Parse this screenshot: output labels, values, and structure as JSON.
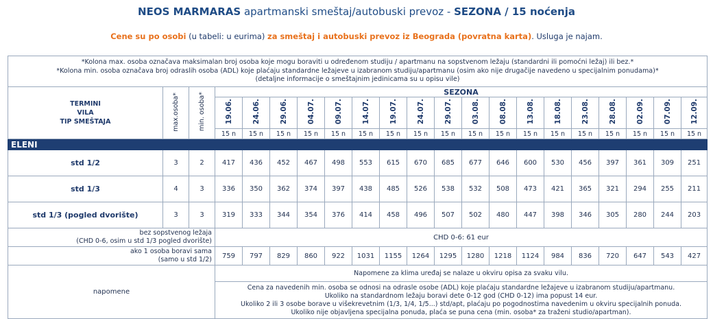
{
  "header": {
    "title_bold": "NEOS MARMARAS",
    "title_mid": " apartmanski smeštaj/autobuski prevoz - ",
    "title_season": "SEZONA / 15 noćenja",
    "sub_or1": "Cene su po osobi",
    "sub_mid1": " (u tabeli: u eurima) ",
    "sub_or2": "za smeštaj i autobuski prevoz iz Beograda (povratna karta)",
    "sub_end": ". Usluga je najam."
  },
  "info_notes": [
    "*Kolona max. osoba označava maksimalan broj osoba koje mogu boraviti u određenom studiju / apartmanu na sopstvenom ležaju (standardni ili pomoćni ležaj) ili bez.*",
    "*Kolona min. osoba označava broj odraslih osoba (ADL) koje plaćaju standardne ležajeve u izabranom studiju/apartmanu (osim ako nije drugačije navedeno u specijalnim ponudama)*",
    "(detaljne informacije o smeštajnim jedinicama su u opisu vile)"
  ],
  "table": {
    "left_header": [
      "TERMINI",
      "VILA",
      "TIP SMEŠTAJA"
    ],
    "max_header": "max.osoba*",
    "min_header": "min. osoba*",
    "season_label": "SEZONA",
    "dates": [
      "19.06.",
      "24.06.",
      "29.06.",
      "04.07.",
      "09.07.",
      "14.07.",
      "19.07.",
      "24.07.",
      "29.07.",
      "03.08.",
      "08.08.",
      "13.08.",
      "18.08.",
      "23.08.",
      "28.08.",
      "02.09.",
      "07.09.",
      "12.09."
    ],
    "nights": [
      "15 n",
      "15 n",
      "15 n",
      "15 n",
      "15 n",
      "15 n",
      "15 n",
      "15 n",
      "15 n",
      "15 n",
      "15 n",
      "15 n",
      "15 n",
      "15 n",
      "15 n",
      "15 n",
      "15 n",
      "15 n"
    ],
    "villa": "ELENI",
    "rows": [
      {
        "type": "std 1/2",
        "max": "3",
        "min": "2",
        "prices": [
          "417",
          "436",
          "452",
          "467",
          "498",
          "553",
          "615",
          "670",
          "685",
          "677",
          "646",
          "600",
          "530",
          "456",
          "397",
          "361",
          "309",
          "251"
        ]
      },
      {
        "type": "std 1/3",
        "max": "4",
        "min": "3",
        "prices": [
          "336",
          "350",
          "362",
          "374",
          "397",
          "438",
          "485",
          "526",
          "538",
          "532",
          "508",
          "473",
          "421",
          "365",
          "321",
          "294",
          "255",
          "211"
        ]
      },
      {
        "type": "std 1/3 (pogled dvorište)",
        "max": "3",
        "min": "3",
        "prices": [
          "319",
          "333",
          "344",
          "354",
          "376",
          "414",
          "458",
          "496",
          "507",
          "502",
          "480",
          "447",
          "398",
          "346",
          "305",
          "280",
          "244",
          "203"
        ]
      }
    ],
    "chd_label_1": "bez sopstvenog ležaja",
    "chd_label_2": "(CHD 0-6, osim u std 1/3 pogled dvorište)",
    "chd_value": "CHD 0-6: 61 eur",
    "single_label_1": "ako 1 osoba boravi sama",
    "single_label_2": "(samo u std 1/2)",
    "single_prices": [
      "759",
      "797",
      "829",
      "860",
      "922",
      "1031",
      "1155",
      "1264",
      "1295",
      "1280",
      "1218",
      "1124",
      "984",
      "836",
      "720",
      "647",
      "543",
      "427"
    ],
    "notes_label": "napomene",
    "note_1": "Napomene za klima uređaj se nalaze u okviru opisa za svaku vilu.",
    "note_2_lines": [
      "Cena za  navedenih min. osoba se odnosi na odrasle osobe (ADL) koje plaćaju standardne ležajeve u izabranom studiju/apartmanu.",
      "Ukoliko na standardnom ležaju boravi dete 0-12 god (CHD 0-12) ima popust 14 eur.",
      "Ukoliko 2 ili 3 osobe borave u višekrevetnim (1/3, 1/4, 1/5...) std/apt, plaćaju po pogodnostima navedenim u okviru specijalnih ponuda.",
      "Ukoliko nije objavljena specijalna ponuda, plaća se puna cena (min. osoba* za traženi studio/apartman)."
    ]
  }
}
